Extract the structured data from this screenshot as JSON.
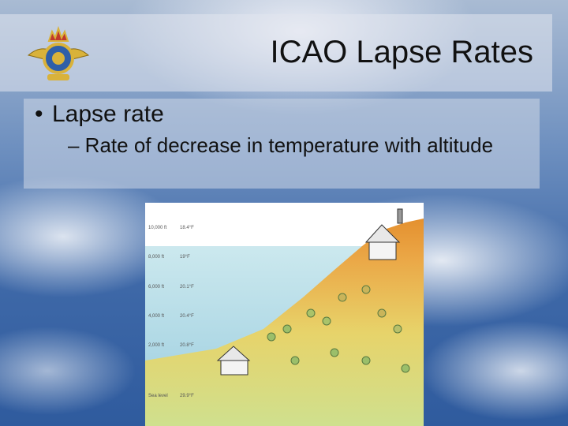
{
  "slide": {
    "title": "ICAO Lapse Rates",
    "bullet": "Lapse rate",
    "sub_bullet": "– Rate of decrease in temperature with altitude"
  },
  "illustration": {
    "altitude_labels": [
      "10,000 ft",
      "8,000 ft",
      "6,000 ft",
      "4,000 ft",
      "2,000 ft",
      "Sea level"
    ],
    "temperature_labels": [
      "18.4°F",
      "19°F",
      "20.1°F",
      "20.4°F",
      "20.8°F",
      "29.9°F"
    ]
  },
  "colors": {
    "sky_top": "#a9bbd3",
    "sky_bottom": "#2f5b9e",
    "hill_low": "#c9d98a",
    "hill_high": "#e89a3a",
    "water": "#8fc6d8"
  }
}
